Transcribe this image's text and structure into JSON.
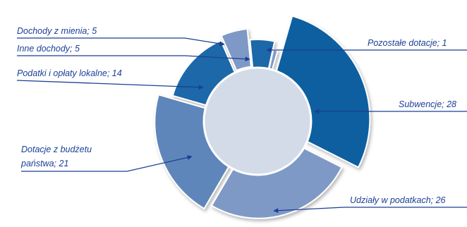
{
  "chart_data": {
    "type": "pie",
    "variant": "exploded donut with varying ring radius",
    "title": "",
    "legend": "none",
    "slices": [
      {
        "label": "Subwencje",
        "value": 28,
        "label_text": "Subwencje; 28",
        "color": "#0f5fa0"
      },
      {
        "label": "Udziały w podatkach",
        "value": 26,
        "label_text": "Udziały w podatkach; 26",
        "color": "#7e99c6"
      },
      {
        "label": "Dotacje z budżetu państwa",
        "value": 21,
        "label_lines": [
          "Dotacje z budżetu",
          "państwa; 21"
        ],
        "color": "#5f86ba"
      },
      {
        "label": "Podatki i opłaty lokalne",
        "value": 14,
        "label_text": "Podatki i opłaty lokalne; 14",
        "color": "#1e68a8"
      },
      {
        "label": "Dochody z mienia",
        "value": 5,
        "label_text": "Dochody z mienia; 5",
        "color": "#7e99c6"
      },
      {
        "label": "Inne dochody",
        "value": 5,
        "label_text": "Inne dochody; 5",
        "color": "#1e68a8"
      },
      {
        "label": "Pozostałe dotacje",
        "value": 1,
        "label_text": "Pozostałe dotacje; 1",
        "color": "#7e99c6"
      }
    ],
    "center_color": "#d3dbe9",
    "label_color": "#1c3f95"
  }
}
